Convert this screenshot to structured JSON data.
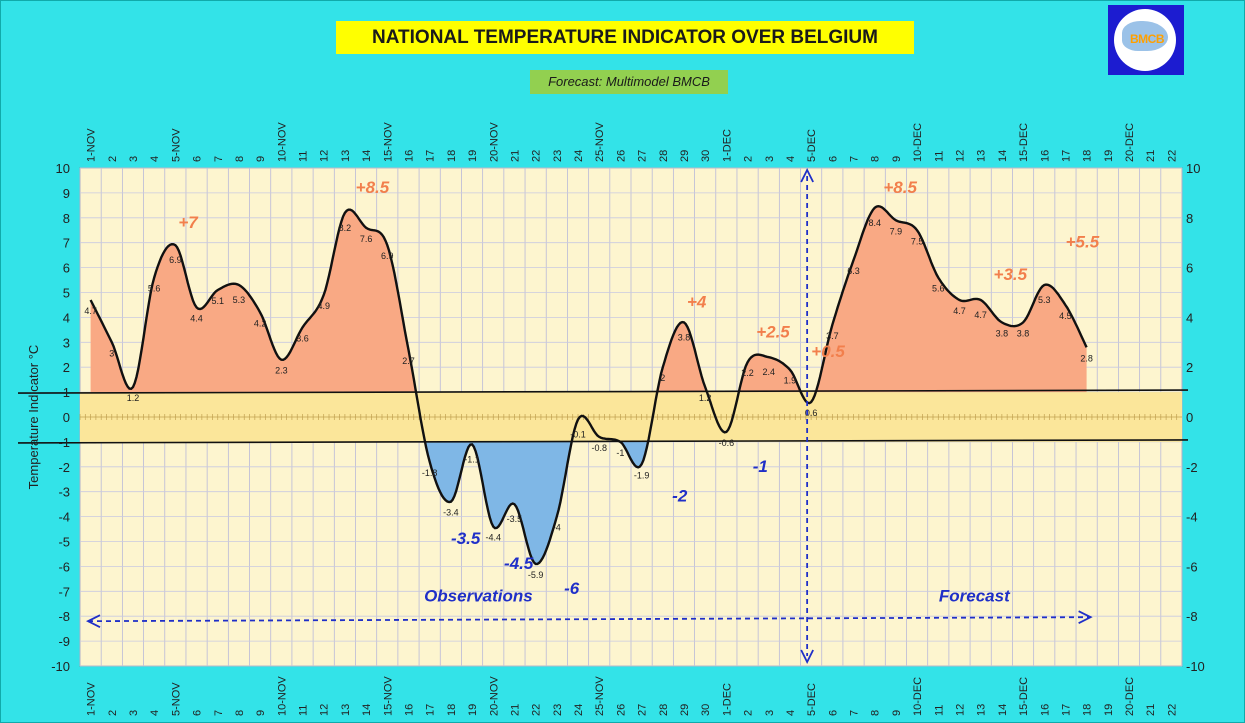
{
  "title": "NATIONAL TEMPERATURE INDICATOR OVER  BELGIUM",
  "subtitle": "Forecast:  Multimodel BMCB",
  "logo_text": "BMCB",
  "colors": {
    "background": "#33e3e8",
    "plot_bg": "#fdf5cf",
    "band": "#fbe69a",
    "warm_fill": "#f9a984",
    "cold_fill": "#7fb7e6",
    "warm_label": "#f27f4c",
    "cold_label": "#1f2fc8",
    "arrow": "#1f2fc8"
  },
  "chart_data": {
    "type": "area",
    "ylabel": "Temperature Indicator   °C",
    "ylim": [
      -10,
      10
    ],
    "y2lim": [
      -10,
      10
    ],
    "yticks": [
      "10",
      "9",
      "8",
      "7",
      "6",
      "5",
      "4",
      "3",
      "2",
      "1",
      "0",
      "-1",
      "-2",
      "-3",
      "-4",
      "-5",
      "-6",
      "-7",
      "-8",
      "-9",
      "-10"
    ],
    "y2ticks": [
      "10",
      "8",
      "6",
      "4",
      "2",
      "0",
      "-2",
      "-4",
      "-6",
      "-8",
      "-10"
    ],
    "x_tick_labels": [
      "1-NOV",
      "2",
      "3",
      "4",
      "5-NOV",
      "6",
      "7",
      "8",
      "9",
      "10-NOV",
      "11",
      "12",
      "13",
      "14",
      "15-NOV",
      "16",
      "17",
      "18",
      "19",
      "20-NOV",
      "21",
      "22",
      "23",
      "24",
      "25-NOV",
      "26",
      "27",
      "28",
      "29",
      "30",
      "1-DEC",
      "2",
      "3",
      "4",
      "5-DEC",
      "6",
      "7",
      "8",
      "9",
      "10-DEC",
      "11",
      "12",
      "13",
      "14",
      "15-DEC",
      "16",
      "17",
      "18",
      "19",
      "20-DEC",
      "21",
      "22"
    ],
    "series": [
      {
        "values": [
          4.7,
          3.0,
          1.2,
          5.6,
          6.9,
          4.4,
          5.1,
          5.3,
          4.2,
          2.3,
          3.6,
          4.9,
          8.2,
          7.6,
          6.9,
          2.7,
          -1.8,
          -3.4,
          -1.1,
          -4.4,
          -3.5,
          -5.9,
          -4.0,
          -0.1,
          -0.8,
          -1.0,
          -1.9,
          2.0,
          3.8,
          1.2,
          -0.6,
          2.2,
          2.4,
          1.9,
          0.6,
          3.7,
          6.3,
          8.4,
          7.9,
          7.5,
          5.6,
          4.7,
          4.7,
          3.8,
          3.8,
          5.3,
          4.5,
          2.8
        ],
        "labels": [
          "4.7",
          "3",
          "1.2",
          "5.6",
          "6.9",
          "4.4",
          "5.1",
          "5.3",
          "4.2",
          "2.3",
          "3.6",
          "4.9",
          "8.2",
          "7.6",
          "6.9",
          "2.7",
          "-1.8",
          "-3.4",
          "-1.1",
          "-4.4",
          "-3.5",
          "-5.9",
          "-4",
          "-0.1",
          "-0.8",
          "-1",
          "-1.9",
          "2",
          "3.8",
          "1.2",
          "-0.6",
          "2.2",
          "2.4",
          "1.9",
          "0.6",
          "3.7",
          "6.3",
          "8.4",
          "7.9",
          "7.5",
          "5.6",
          "4.7",
          "4.7",
          "3.8",
          "3.8",
          "5.3",
          "4.5",
          "2.8"
        ]
      }
    ],
    "band": {
      "upper": 1,
      "lower": -1
    },
    "forecast_start_day": 34,
    "warm_annotations": [
      {
        "text": "+7",
        "day": 4.6,
        "y": 7.6
      },
      {
        "text": "+8.5",
        "day": 13.3,
        "y": 9.0
      },
      {
        "text": "+4",
        "day": 28.6,
        "y": 4.4
      },
      {
        "text": "+2.5",
        "day": 32.2,
        "y": 3.2
      },
      {
        "text": "+0.5",
        "day": 34.8,
        "y": 2.4
      },
      {
        "text": "+8.5",
        "day": 38.2,
        "y": 9.0
      },
      {
        "text": "+3.5",
        "day": 43.4,
        "y": 5.5
      },
      {
        "text": "+5.5",
        "day": 46.8,
        "y": 6.8
      }
    ],
    "cold_annotations": [
      {
        "text": "-3.5",
        "day": 17.7,
        "y": -5.1
      },
      {
        "text": "-4.5",
        "day": 20.2,
        "y": -6.1
      },
      {
        "text": "-6",
        "day": 22.7,
        "y": -7.1
      },
      {
        "text": "-2",
        "day": 27.8,
        "y": -3.4
      },
      {
        "text": "-1",
        "day": 31.6,
        "y": -2.2
      }
    ],
    "region_labels": [
      {
        "text": "Observations",
        "day": 18.3,
        "y": -7.4
      },
      {
        "text": "Forecast",
        "day": 41.7,
        "y": -7.4
      }
    ]
  }
}
